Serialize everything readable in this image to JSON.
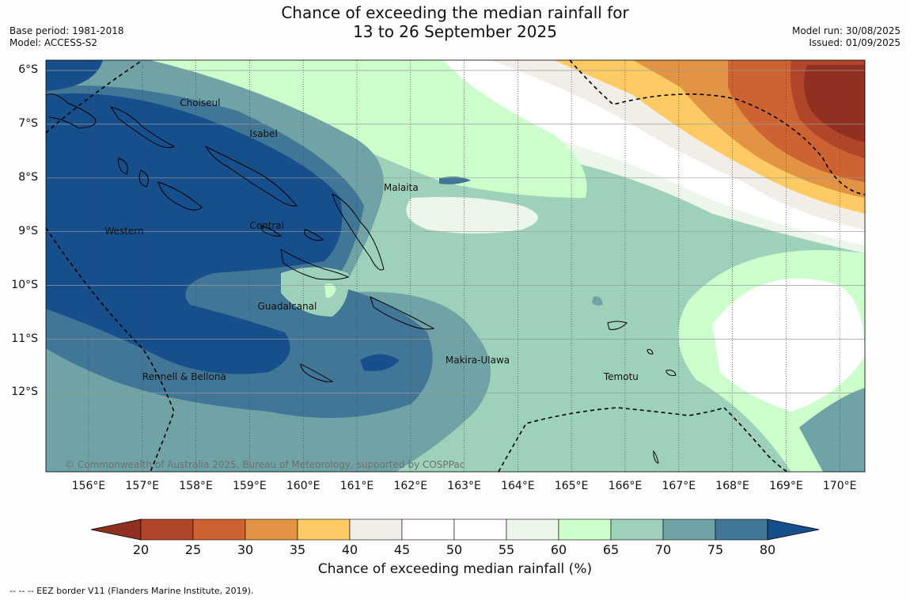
{
  "title": {
    "line1": "Chance of exceeding the median rainfall for",
    "line2": "13 to 26 September 2025"
  },
  "meta_left": {
    "base_period": "Base period: 1981-2018",
    "model": "Model: ACCESS-S2"
  },
  "meta_right": {
    "model_run": "Model run: 30/08/2025",
    "issued": "Issued: 01/09/2025"
  },
  "lat_labels": [
    "6°S",
    "7°S",
    "8°S",
    "9°S",
    "10°S",
    "11°S",
    "12°S"
  ],
  "lon_labels": [
    "156°E",
    "157°E",
    "158°E",
    "159°E",
    "160°E",
    "161°E",
    "162°E",
    "163°E",
    "164°E",
    "165°E",
    "166°E",
    "167°E",
    "168°E",
    "169°E",
    "170°E"
  ],
  "places": [
    {
      "name": "Choiseul",
      "lon": 157.7,
      "lat": -6.62
    },
    {
      "name": "Isabel",
      "lon": 159.0,
      "lat": -7.2
    },
    {
      "name": "Malaita",
      "lon": 161.5,
      "lat": -8.2
    },
    {
      "name": "Western",
      "lon": 156.3,
      "lat": -9.0
    },
    {
      "name": "Central",
      "lon": 159.0,
      "lat": -8.9
    },
    {
      "name": "Guadalcanal",
      "lon": 159.15,
      "lat": -10.4
    },
    {
      "name": "Makira-Ulawa",
      "lon": 162.65,
      "lat": -11.4
    },
    {
      "name": "Temotu",
      "lon": 165.6,
      "lat": -11.72
    },
    {
      "name": "Rennell & Bellona",
      "lon": 157.0,
      "lat": -11.72
    }
  ],
  "copyright": "© Commonwealth of Australia 2025, Bureau of Meteorology, supported by COSPPac",
  "colorbar": {
    "title": "Chance of exceeding median rainfall (%)",
    "labels": [
      "20",
      "25",
      "30",
      "35",
      "40",
      "45",
      "50",
      "55",
      "60",
      "65",
      "70",
      "75",
      "80"
    ],
    "colors": {
      "below20": "#8f3020",
      "20-25": "#b14529",
      "25-30": "#cd6332",
      "30-35": "#e29444",
      "35-40": "#fdca63",
      "40-45": "#f3ede8",
      "45-50": "#ffffff",
      "50-55": "#ffffff",
      "55-60": "#ecf6eb",
      "60-65": "#ccffcc",
      "65-70": "#9ed1ba",
      "70-75": "#6fa3a6",
      "75-80": "#417697",
      "above80": "#174f8c"
    }
  },
  "footnote": "--  --  -- EEZ border V11 (Flanders Marine Institute, 2019)."
}
